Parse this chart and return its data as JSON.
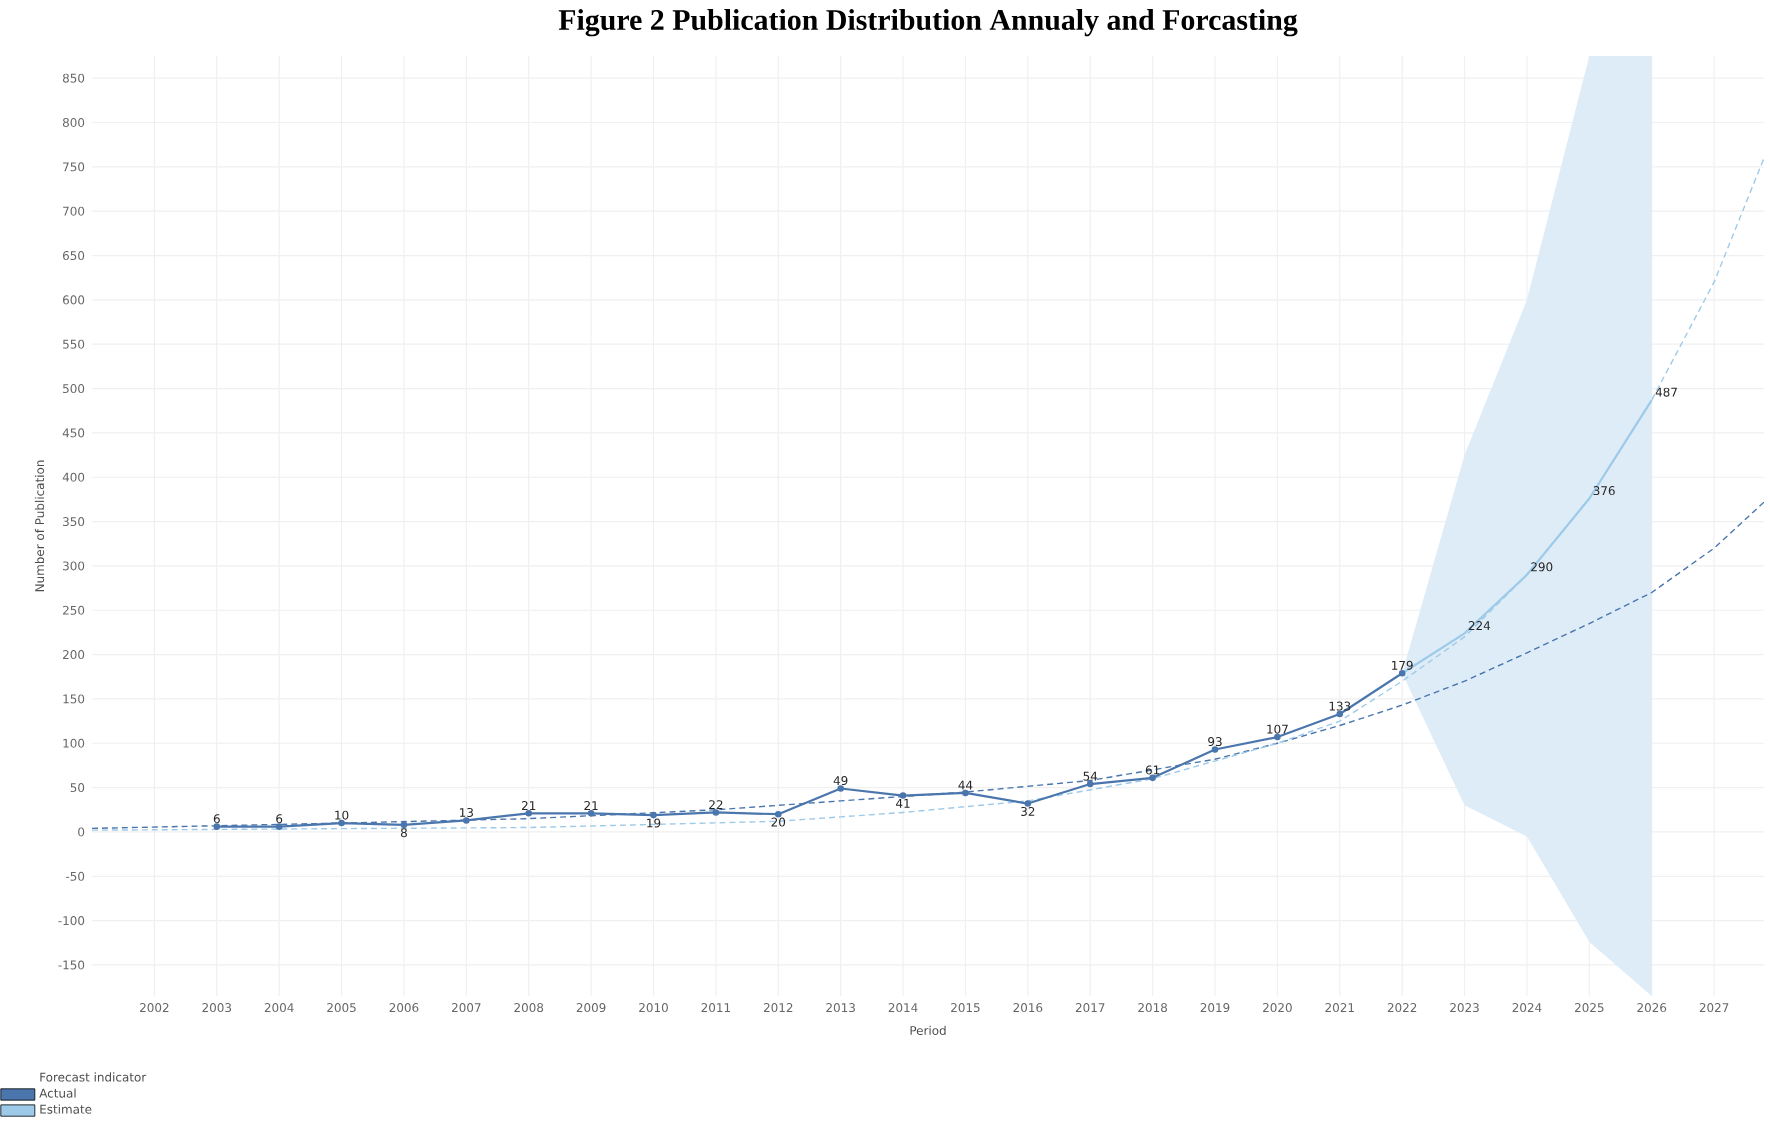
{
  "chart_data": {
    "type": "line",
    "title": "Figure 2 Publication Distribution Annualy and Forcasting",
    "xlabel": "Period",
    "ylabel": "Number of Publication",
    "legend_title": "Forecast indicator",
    "xlim": [
      2001,
      2027.8
    ],
    "ylim": [
      -185,
      875
    ],
    "xticks": [
      2002,
      2003,
      2004,
      2005,
      2006,
      2007,
      2008,
      2009,
      2010,
      2011,
      2012,
      2013,
      2014,
      2015,
      2016,
      2017,
      2018,
      2019,
      2020,
      2021,
      2022,
      2023,
      2024,
      2025,
      2026,
      2027
    ],
    "yticks": [
      -150,
      -100,
      -50,
      0,
      50,
      100,
      150,
      200,
      250,
      300,
      350,
      400,
      450,
      500,
      550,
      600,
      650,
      700,
      750,
      800,
      850
    ],
    "grid": true,
    "legend": "bottom left",
    "series": [
      {
        "name": "Actual",
        "color": "#4a76ad",
        "marker": "circle",
        "x": [
          2003,
          2004,
          2005,
          2006,
          2007,
          2008,
          2009,
          2010,
          2011,
          2012,
          2013,
          2014,
          2015,
          2016,
          2017,
          2018,
          2019,
          2020,
          2021,
          2022
        ],
        "values": [
          6,
          6,
          10,
          8,
          13,
          21,
          21,
          19,
          22,
          20,
          49,
          41,
          44,
          32,
          54,
          61,
          93,
          107,
          133,
          179
        ],
        "value_labels": [
          "6",
          "6",
          "10",
          "8",
          "13",
          "21",
          "21",
          "19",
          "22",
          "20",
          "49",
          "41",
          "44",
          "32",
          "54",
          "61",
          "93",
          "107",
          "133",
          "179"
        ]
      },
      {
        "name": "Estimate",
        "color": "#9ecae9",
        "x": [
          2022,
          2023,
          2024,
          2025,
          2026
        ],
        "values": [
          179,
          224,
          290,
          376,
          487
        ],
        "value_labels": [
          null,
          "224",
          "290",
          "376",
          "487"
        ],
        "lower": [
          179,
          30,
          -5,
          -124,
          -185
        ],
        "upper": [
          179,
          425,
          600,
          875,
          875
        ]
      },
      {
        "type": "line",
        "color": "#4a76ad",
        "line_style": "dashed",
        "x": [
          2001,
          2005,
          2008,
          2011,
          2013,
          2015,
          2017,
          2019,
          2020,
          2021,
          2022,
          2023,
          2024,
          2025,
          2026,
          2027,
          2027.8
        ],
        "values": [
          4,
          10,
          15,
          25,
          35,
          45,
          58,
          82,
          100,
          120,
          143,
          170,
          202,
          235,
          270,
          320,
          372
        ]
      },
      {
        "type": "line",
        "color": "#9ecae9",
        "line_style": "dashed",
        "x": [
          2001,
          2008,
          2012,
          2013,
          2014,
          2016,
          2018,
          2019,
          2020,
          2021,
          2022,
          2023,
          2024,
          2025,
          2026,
          2027,
          2027.8
        ],
        "values": [
          2,
          5,
          12,
          17,
          22,
          35,
          60,
          80,
          100,
          125,
          170,
          220,
          290,
          376,
          487,
          620,
          760
        ]
      }
    ]
  }
}
